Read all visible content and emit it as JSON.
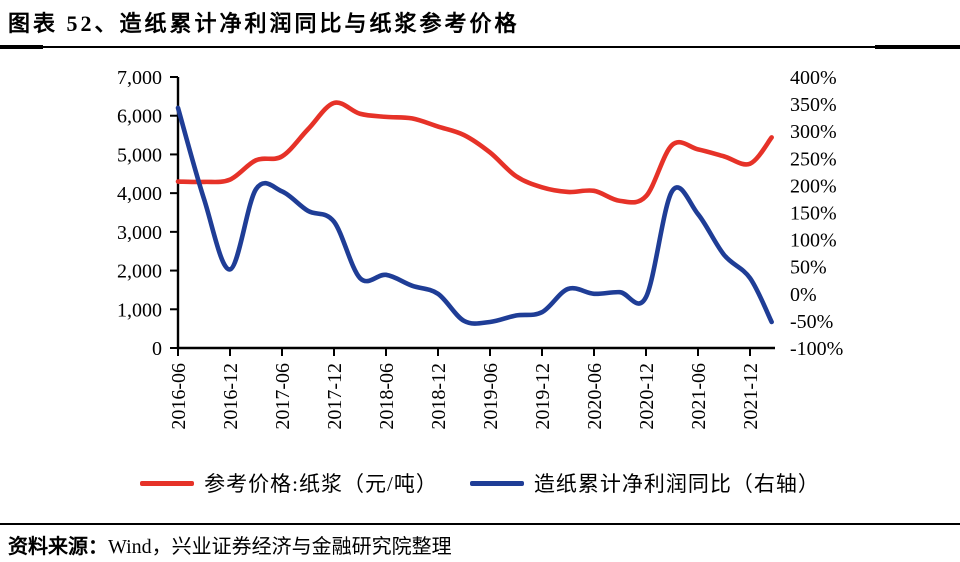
{
  "figure": {
    "title": "图表 52、造纸累计净利润同比与纸浆参考价格"
  },
  "source": {
    "label": "资料来源：",
    "text": "Wind，兴业证券经济与金融研究院整理"
  },
  "colors": {
    "price_line": "#e63228",
    "profit_line": "#1f3d96",
    "axis": "#000000"
  },
  "chart_data": {
    "type": "line",
    "title": "造纸累计净利润同比与纸浆参考价格",
    "grid": false,
    "legend_position": "bottom",
    "x_tick_labels": [
      "2016-06",
      "2016-12",
      "2017-06",
      "2017-12",
      "2018-06",
      "2018-12",
      "2019-06",
      "2019-12",
      "2020-06",
      "2020-12",
      "2021-06",
      "2021-12"
    ],
    "x_tick_interval_months": 6,
    "left_axis": {
      "tick_labels_top_to_bottom": [
        "7,000",
        "6,000",
        "5,000",
        "4,000",
        "3,000",
        "2,000",
        "1,000",
        "0"
      ],
      "range": [
        0,
        7000
      ]
    },
    "right_axis": {
      "tick_labels_top_to_bottom": [
        "400%",
        "350%",
        "300%",
        "250%",
        "200%",
        "150%",
        "100%",
        "50%",
        "0%",
        "-50%",
        "-100%"
      ],
      "range_percent": [
        -100,
        400
      ]
    },
    "series": [
      {
        "name": "参考价格:纸浆（元/吨）",
        "axis": "left",
        "color": "#e63228",
        "months_since_2016_06": [
          0,
          3,
          6,
          9,
          12,
          15,
          18,
          21,
          24,
          27,
          30,
          33,
          36,
          39,
          42,
          45,
          48,
          51,
          54,
          57,
          60,
          63,
          66,
          68.5
        ],
        "values_yuan_per_ton": [
          4300,
          4290,
          4350,
          4850,
          4950,
          5650,
          6330,
          6050,
          5970,
          5930,
          5720,
          5500,
          5050,
          4440,
          4150,
          4030,
          4060,
          3800,
          3920,
          5240,
          5130,
          4950,
          4760,
          5440
        ]
      },
      {
        "name": "造纸累计净利润同比（右轴）",
        "axis": "right",
        "color": "#1f3d96",
        "months_since_2016_06": [
          0,
          3,
          6,
          9,
          12,
          15,
          18,
          21,
          24,
          27,
          30,
          33,
          36,
          39,
          42,
          45,
          48,
          51,
          54,
          57,
          60,
          63,
          66,
          68.5
        ],
        "values_percent": [
          343,
          175,
          45,
          193,
          189,
          153,
          133,
          29,
          35,
          15,
          0,
          -50,
          -52,
          -40,
          -34,
          9,
          0,
          3,
          -6,
          189,
          147,
          72,
          29,
          -52
        ]
      }
    ]
  }
}
